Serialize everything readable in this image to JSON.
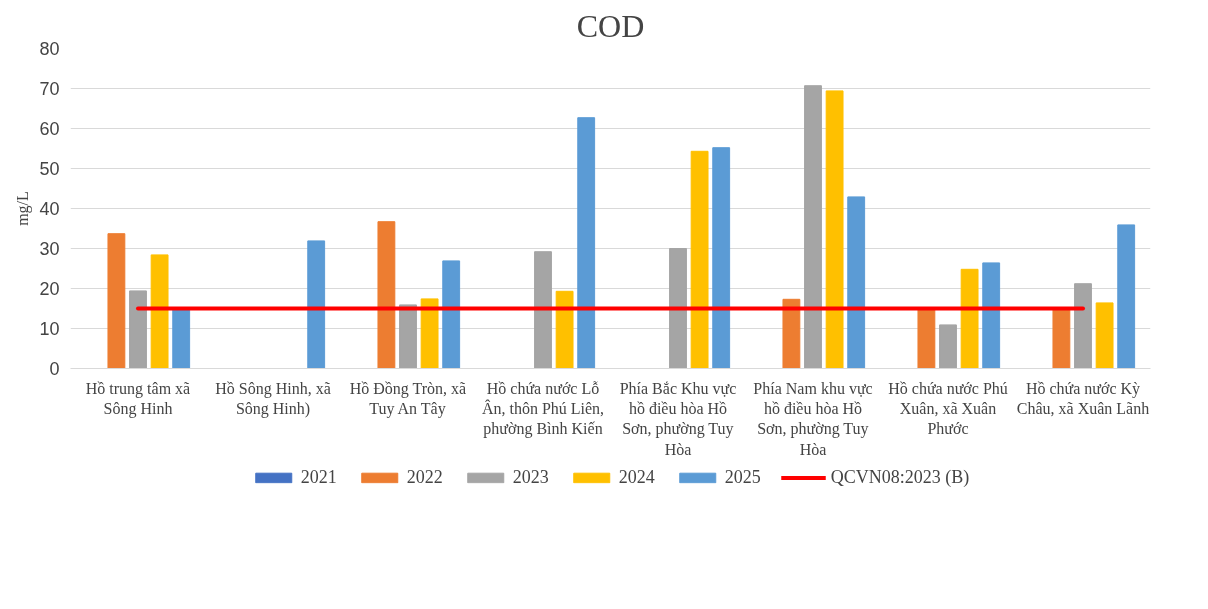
{
  "chart_data": {
    "type": "bar",
    "title": "COD",
    "ylabel": "mg/L",
    "categories": [
      "Hồ trung tâm xã Sông Hinh",
      "Hồ Sông Hinh, xã Sông Hinh)",
      "Hồ Đồng Tròn, xã Tuy An Tây",
      "Hồ chứa nước Lỗ Ân, thôn Phú Liên, phường Bình Kiến",
      "Phía Bắc Khu vực hồ điều hòa Hồ Sơn, phường Tuy Hòa",
      "Phía Nam khu vực hồ điều hòa Hồ Sơn, phường Tuy Hòa",
      "Hồ chứa nước Phú Xuân, xã Xuân Phước",
      "Hồ chứa nước Kỳ Châu, xã Xuân Lãnh"
    ],
    "series": [
      {
        "name": "2021",
        "color": "#4472c4",
        "values": [
          null,
          null,
          null,
          null,
          null,
          null,
          null,
          null
        ]
      },
      {
        "name": "2022",
        "color": "#ed7d31",
        "values": [
          33.7,
          null,
          36.7,
          null,
          null,
          17.3,
          15,
          15
        ]
      },
      {
        "name": "2023",
        "color": "#a5a5a5",
        "values": [
          19.4,
          null,
          15.9,
          29.2,
          30.0,
          70.7,
          10.9,
          21.2
        ]
      },
      {
        "name": "2024",
        "color": "#ffc000",
        "values": [
          28.4,
          null,
          17.4,
          19.3,
          54.3,
          69.4,
          24.8,
          16.4
        ]
      },
      {
        "name": "2025",
        "color": "#5b9bd5",
        "values": [
          15,
          31.9,
          26.9,
          62.7,
          55.2,
          42.9,
          26.4,
          35.9
        ]
      },
      {
        "name": "QCVN08:2023 (B)",
        "type": "line",
        "color": "#ff0000",
        "values": [
          15,
          15,
          15,
          15,
          15,
          15,
          15,
          15
        ]
      }
    ],
    "ylim": [
      0,
      80
    ],
    "yticks": [
      0,
      10,
      20,
      30,
      40,
      50,
      60,
      70,
      80
    ],
    "grid": "y",
    "legend": "bottom"
  }
}
